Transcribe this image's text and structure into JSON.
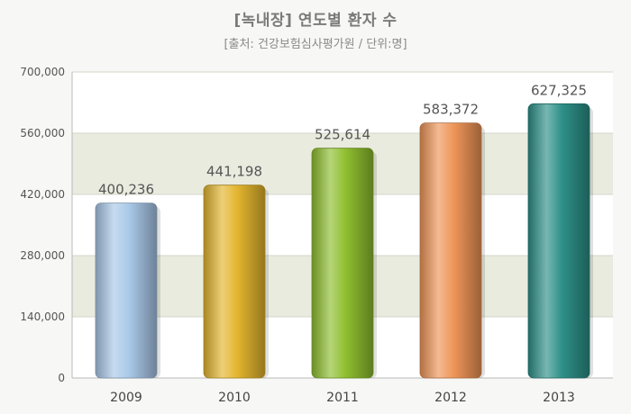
{
  "chart_data": {
    "type": "bar",
    "title": "[녹내장] 연도별 환자 수",
    "subtitle": "[출처: 건강보험심사평가원 / 단위:명]",
    "categories": [
      "2009",
      "2010",
      "2011",
      "2012",
      "2013"
    ],
    "values": [
      400236,
      441198,
      525614,
      583372,
      627325
    ],
    "value_labels": [
      "400,236",
      "441,198",
      "525,614",
      "583,372",
      "627,325"
    ],
    "yticks": [
      "0",
      "140,000",
      "280,000",
      "420,000",
      "560,000",
      "700,000"
    ],
    "ylim": [
      0,
      700000
    ],
    "xlabel": "",
    "ylabel": "",
    "grid": true,
    "legend": "none",
    "colors": {
      "bars": [
        "#a9c8e8",
        "#e3b52e",
        "#8fbf2f",
        "#ee9558",
        "#2d9088"
      ],
      "band": "#e9ebdf",
      "plot_bg": "#ffffff"
    }
  }
}
